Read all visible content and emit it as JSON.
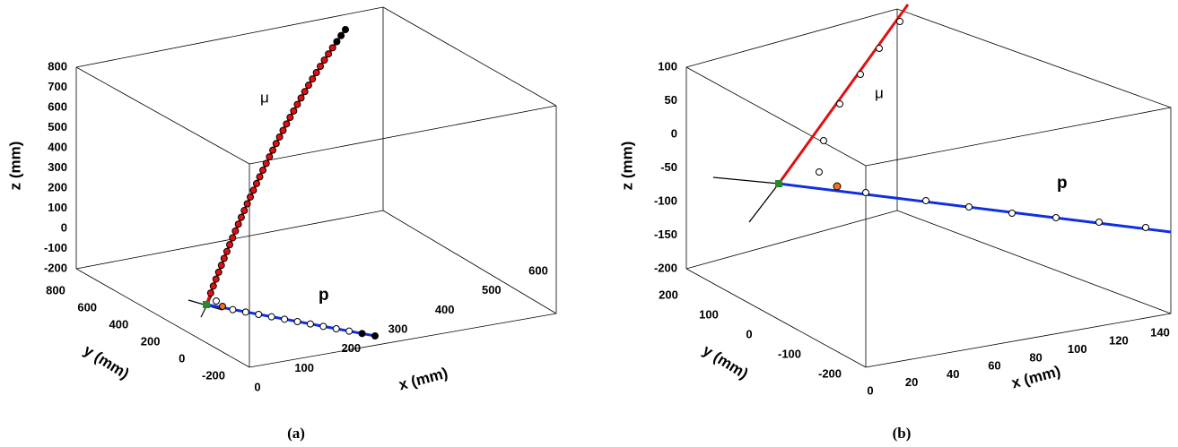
{
  "panels": [
    {
      "label": "(a)",
      "particle_labels": [
        "μ",
        "p"
      ],
      "axes": {
        "x": {
          "title": "x (mm)",
          "ticks": [
            "0",
            "100",
            "200",
            "300",
            "400",
            "500",
            "600"
          ]
        },
        "y": {
          "title": "y (mm)",
          "ticks": [
            "800",
            "600",
            "400",
            "200",
            "0",
            "-200"
          ]
        },
        "z": {
          "title": "z (mm)",
          "ticks": [
            "800",
            "700",
            "600",
            "500",
            "400",
            "300",
            "200",
            "100",
            "0",
            "-100",
            "-200"
          ]
        }
      }
    },
    {
      "label": "(b)",
      "particle_labels": [
        "μ",
        "p"
      ],
      "axes": {
        "x": {
          "title": "x (mm)",
          "ticks": [
            "0",
            "20",
            "40",
            "60",
            "80",
            "100",
            "120",
            "140"
          ]
        },
        "y": {
          "title": "y (mm)",
          "ticks": [
            "200",
            "100",
            "0",
            "-100",
            "-200"
          ]
        },
        "z": {
          "title": "z (mm)",
          "ticks": [
            "100",
            "50",
            "0",
            "-50",
            "-100",
            "-150",
            "-200"
          ]
        }
      }
    }
  ]
}
